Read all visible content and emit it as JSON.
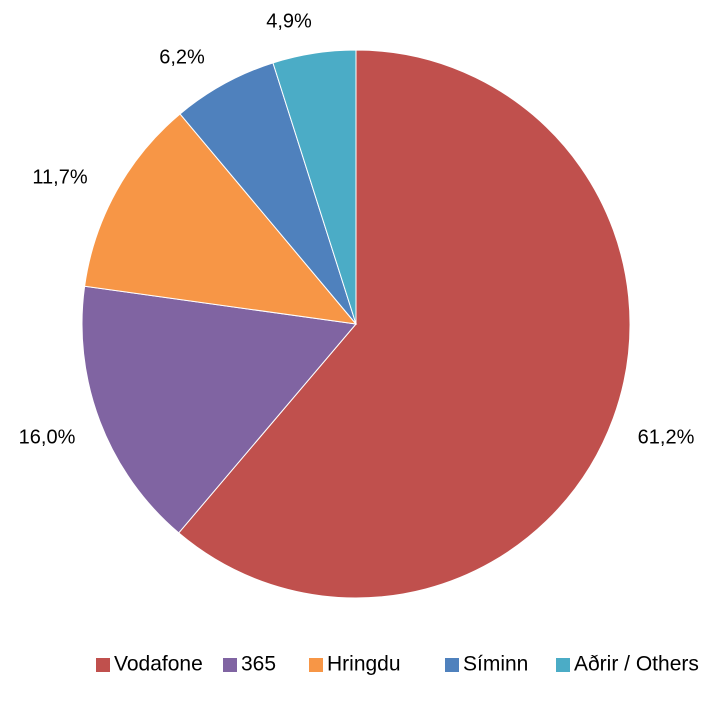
{
  "chart_data": {
    "type": "pie",
    "start_angle_deg": 0,
    "direction": "clockwise",
    "legend_position": "bottom",
    "slices": [
      {
        "name": "Vodafone",
        "value": 61.2,
        "label": "61,2%",
        "color": "#C0504D"
      },
      {
        "name": "365",
        "value": 16.0,
        "label": "16,0%",
        "color": "#8064A2"
      },
      {
        "name": "Hringdu",
        "value": 11.7,
        "label": "11,7%",
        "color": "#F79646"
      },
      {
        "name": "Síminn",
        "value": 6.2,
        "label": "6,2%",
        "color": "#4F81BD"
      },
      {
        "name": "Aðrir / Others",
        "value": 4.9,
        "label": "4,9%",
        "color": "#4BACC6"
      }
    ]
  }
}
